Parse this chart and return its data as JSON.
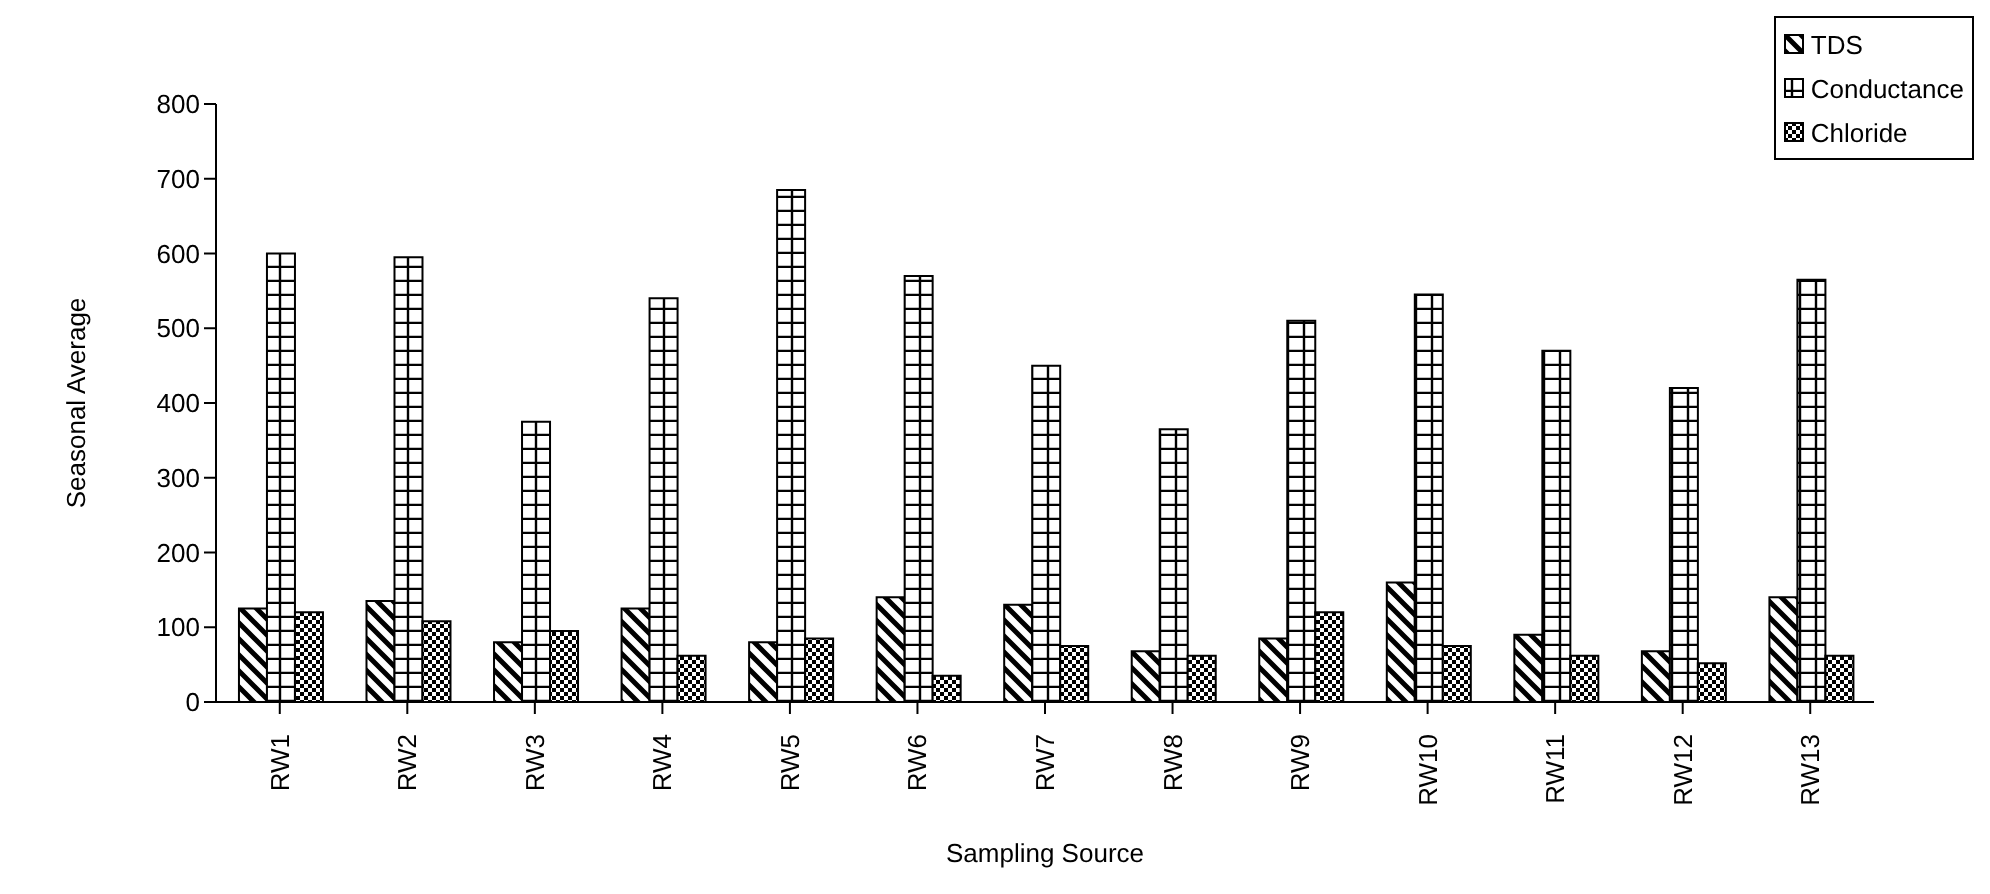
{
  "chart_data": {
    "type": "bar",
    "xlabel": "Sampling Source",
    "ylabel": "Seasonal Average",
    "categories": [
      "RW1",
      "RW2",
      "RW3",
      "RW4",
      "RW5",
      "RW6",
      "RW7",
      "RW8",
      "RW9",
      "RW10",
      "RW11",
      "RW12",
      "RW13"
    ],
    "series": [
      {
        "name": "TDS",
        "color": "#000000",
        "values": [
          125,
          135,
          80,
          125,
          80,
          140,
          130,
          68,
          85,
          160,
          90,
          68,
          140
        ]
      },
      {
        "name": "Conductance",
        "color": "#000000",
        "values": [
          600,
          595,
          375,
          540,
          685,
          570,
          450,
          365,
          510,
          545,
          470,
          420,
          565
        ]
      },
      {
        "name": "Chloride",
        "color": "#000000",
        "values": [
          120,
          108,
          95,
          62,
          85,
          35,
          75,
          62,
          120,
          75,
          62,
          52,
          62
        ]
      }
    ],
    "ylim": [
      0,
      800
    ],
    "yticks": [
      0,
      100,
      200,
      300,
      400,
      500,
      600,
      700,
      800
    ],
    "grid": false,
    "legend": "top right"
  }
}
